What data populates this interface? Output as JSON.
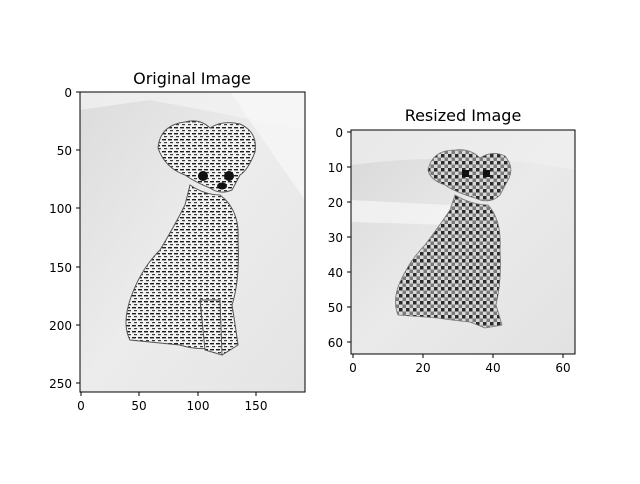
{
  "panels": [
    {
      "title": "Original Image",
      "x_ticks": [
        "0",
        "50",
        "100",
        "150"
      ],
      "y_ticks": [
        "0",
        "50",
        "100",
        "150",
        "200",
        "250"
      ],
      "image_content": "grayscale photo of a seated chihuahua figurine covered in newspaper lettering, light grey background"
    },
    {
      "title": "Resized Image",
      "x_ticks": [
        "0",
        "20",
        "40",
        "60"
      ],
      "y_ticks": [
        "0",
        "10",
        "20",
        "30",
        "40",
        "50",
        "60"
      ],
      "image_content": "pixelated 64x64 downscaled version of the same chihuahua figurine"
    }
  ],
  "colors": {
    "background": "#ffffff",
    "axis": "#000000",
    "image_light": "#e6e6e6",
    "image_dark": "#1a1a1a"
  }
}
